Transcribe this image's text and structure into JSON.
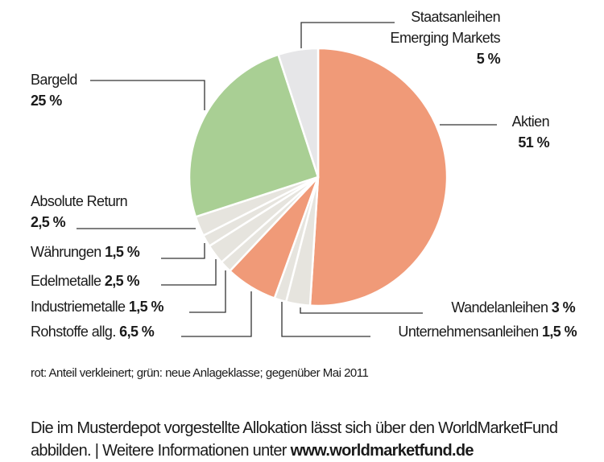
{
  "chart_data": {
    "type": "pie",
    "start": "top",
    "direction": "clockwise",
    "slices": [
      {
        "name": "Aktien",
        "value": 51,
        "label": "51 %",
        "color": "#F09A78"
      },
      {
        "name": "Wandelanleihen",
        "value": 3,
        "label": "3 %",
        "color": "#E6E4DE"
      },
      {
        "name": "Unternehmensanleihen",
        "value": 1.5,
        "label": "1,5 %",
        "color": "#E6E4DE"
      },
      {
        "name": "Rohstoffe allg.",
        "value": 6.5,
        "label": "6,5 %",
        "color": "#F09A78"
      },
      {
        "name": "Industriemetalle",
        "value": 1.5,
        "label": "1,5 %",
        "color": "#E6E4DE"
      },
      {
        "name": "Edelmetalle",
        "value": 2.5,
        "label": "2,5 %",
        "color": "#E6E4DE"
      },
      {
        "name": "Währungen",
        "value": 1.5,
        "label": "1,5 %",
        "color": "#E6E4DE"
      },
      {
        "name": "Absolute Return",
        "value": 2.5,
        "label": "2,5 %",
        "color": "#E6E4DE"
      },
      {
        "name": "Bargeld",
        "value": 25,
        "label": "25 %",
        "color": "#A9CF94"
      },
      {
        "name": "Staatsanleihen Emerging Markets",
        "value": 5,
        "label": "5 %",
        "color": "#E6E6E8"
      }
    ],
    "label_lines": {
      "staats_1": "Staatsanleihen",
      "staats_2": "Emerging Markets"
    }
  },
  "note": "rot: Anteil verkleinert; grün: neue Anlageklasse; gegenüber Mai 2011",
  "footer": {
    "line1": "Die im Musterdepot vorgestellte Allokation lässt sich über den WorldMarketFund",
    "line2_prefix": "abbilden. | Weitere Informationen unter ",
    "link": "www.worldmarketfund.de"
  }
}
